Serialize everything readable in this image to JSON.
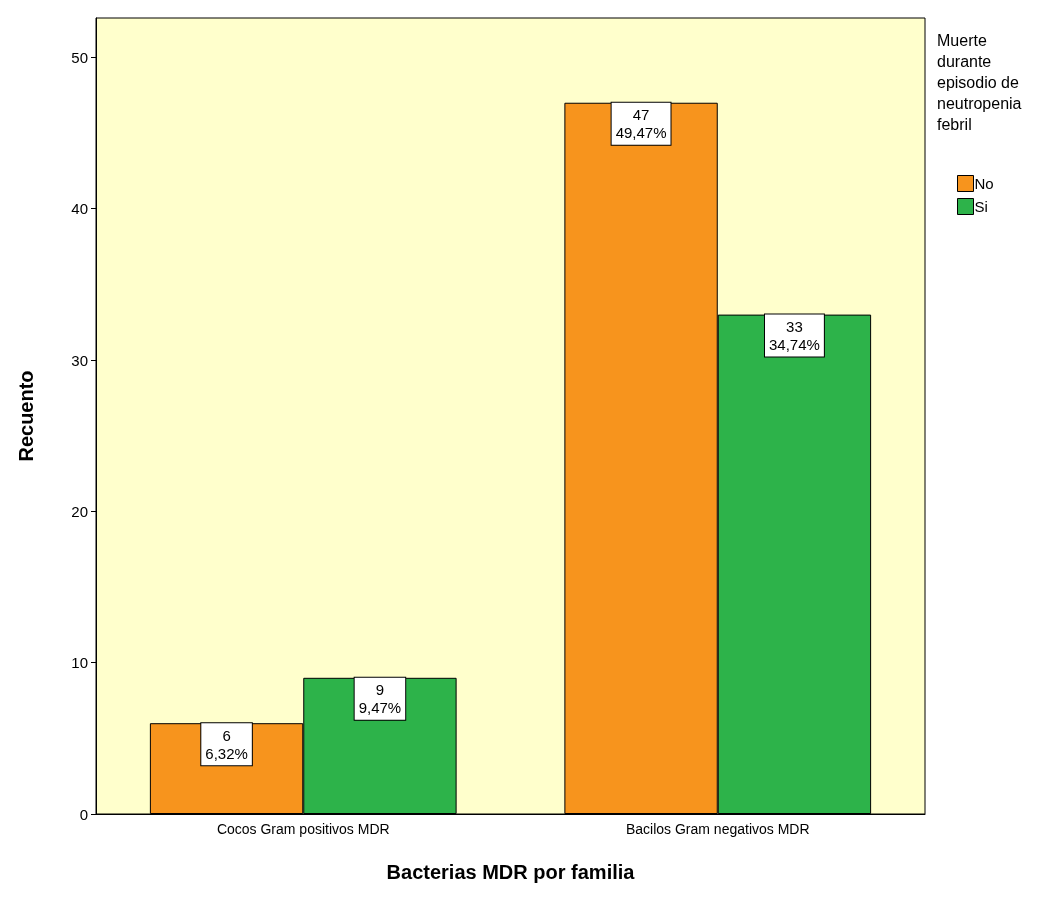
{
  "chart_data": {
    "type": "bar",
    "xlabel": "Bacterias MDR por familia",
    "ylabel": "Recuento",
    "legend_title": "Muerte\ndurante\nepisodio de\nneutropenia\nfebril",
    "categories": [
      "Cocos Gram positivos MDR",
      "Bacilos Gram negativos MDR"
    ],
    "series": [
      {
        "name": "No",
        "color": "#f7941d",
        "values": [
          6,
          47
        ],
        "value_labels": [
          "6\n6,32%",
          "47\n49,47%"
        ]
      },
      {
        "name": "Si",
        "color": "#2db34a",
        "values": [
          9,
          33
        ],
        "value_labels": [
          "9\n9,47%",
          "33\n34,74%"
        ]
      }
    ],
    "ylim": [
      0,
      52.6
    ],
    "yticks": [
      0,
      10,
      20,
      30,
      40,
      50
    ],
    "grid": false,
    "legend": "top right"
  }
}
